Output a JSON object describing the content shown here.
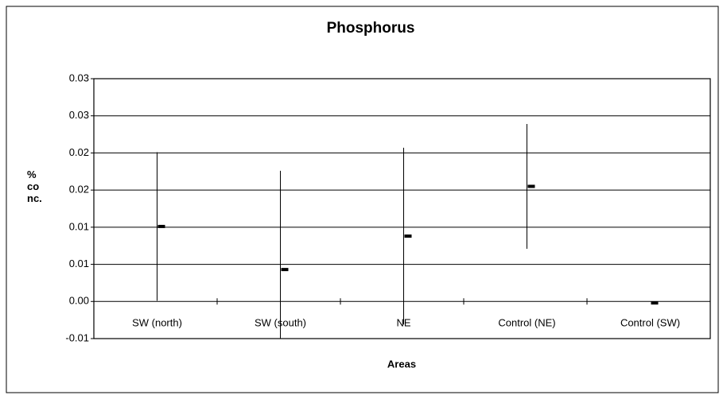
{
  "chart_data": {
    "type": "errorbar",
    "title": "Phosphorus",
    "xlabel": "Areas",
    "ylabel": "% co nc.",
    "categories": [
      "SW (north)",
      "SW (south)",
      "NE",
      "Control (NE)",
      "Control (SW)"
    ],
    "values": [
      0.0101,
      0.0043,
      0.0088,
      0.0155,
      -0.0002
    ],
    "errors": [
      0.01,
      0.0133,
      0.0119,
      0.0084,
      0
    ],
    "color": "#000000",
    "ylim": [
      -0.005,
      0.03
    ],
    "yticks": [
      {
        "value": -0.005,
        "label": "-0.01"
      },
      {
        "value": 0,
        "label": "0.00"
      },
      {
        "value": 0.005,
        "label": "0.01"
      },
      {
        "value": 0.01,
        "label": "0.01"
      },
      {
        "value": 0.015,
        "label": "0.02"
      },
      {
        "value": 0.02,
        "label": "0.02"
      },
      {
        "value": 0.025,
        "label": "0.03"
      },
      {
        "value": 0.03,
        "label": "0.03"
      }
    ],
    "grid": true
  }
}
